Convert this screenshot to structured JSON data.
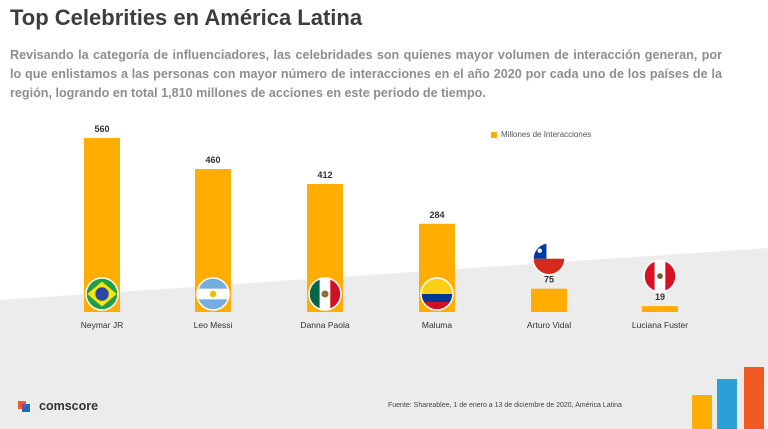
{
  "header": {
    "title": "Top Celebrities en América Latina",
    "intro": "Revisando la categoría de influenciadores, las celebridades son quienes mayor volumen de interacción generan, por lo que enlistamos a las personas con mayor número de interacciones en el año 2020 por cada uno de los países de la región, logrando en total 1,810 millones de acciones en este periodo de tiempo."
  },
  "chart_data": {
    "type": "bar",
    "categories": [
      "Neymar JR",
      "Leo Messi",
      "Danna Paola",
      "Maluma",
      "Arturo Vidal",
      "Luciana Fuster"
    ],
    "values": [
      560,
      460,
      412,
      284,
      75,
      19
    ],
    "flags": [
      "brazil",
      "argentina",
      "mexico",
      "colombia",
      "chile",
      "peru"
    ],
    "series_name": "Millones de Interacciones",
    "title": "Top Celebrities en América Latina",
    "xlabel": "",
    "ylabel": "",
    "ylim": [
      0,
      560
    ],
    "grid": false,
    "legend": "top-right",
    "color": "#ffad00"
  },
  "footer": {
    "brand": "comscore",
    "source": "Fuente: Shareablee, 1 de enero a 13 de diciembre de 2020, América Latina"
  },
  "colors": {
    "accent": "#ffad00",
    "title": "#3d3d3d",
    "intro": "#8e8e8e",
    "background_band": "#ececec"
  }
}
